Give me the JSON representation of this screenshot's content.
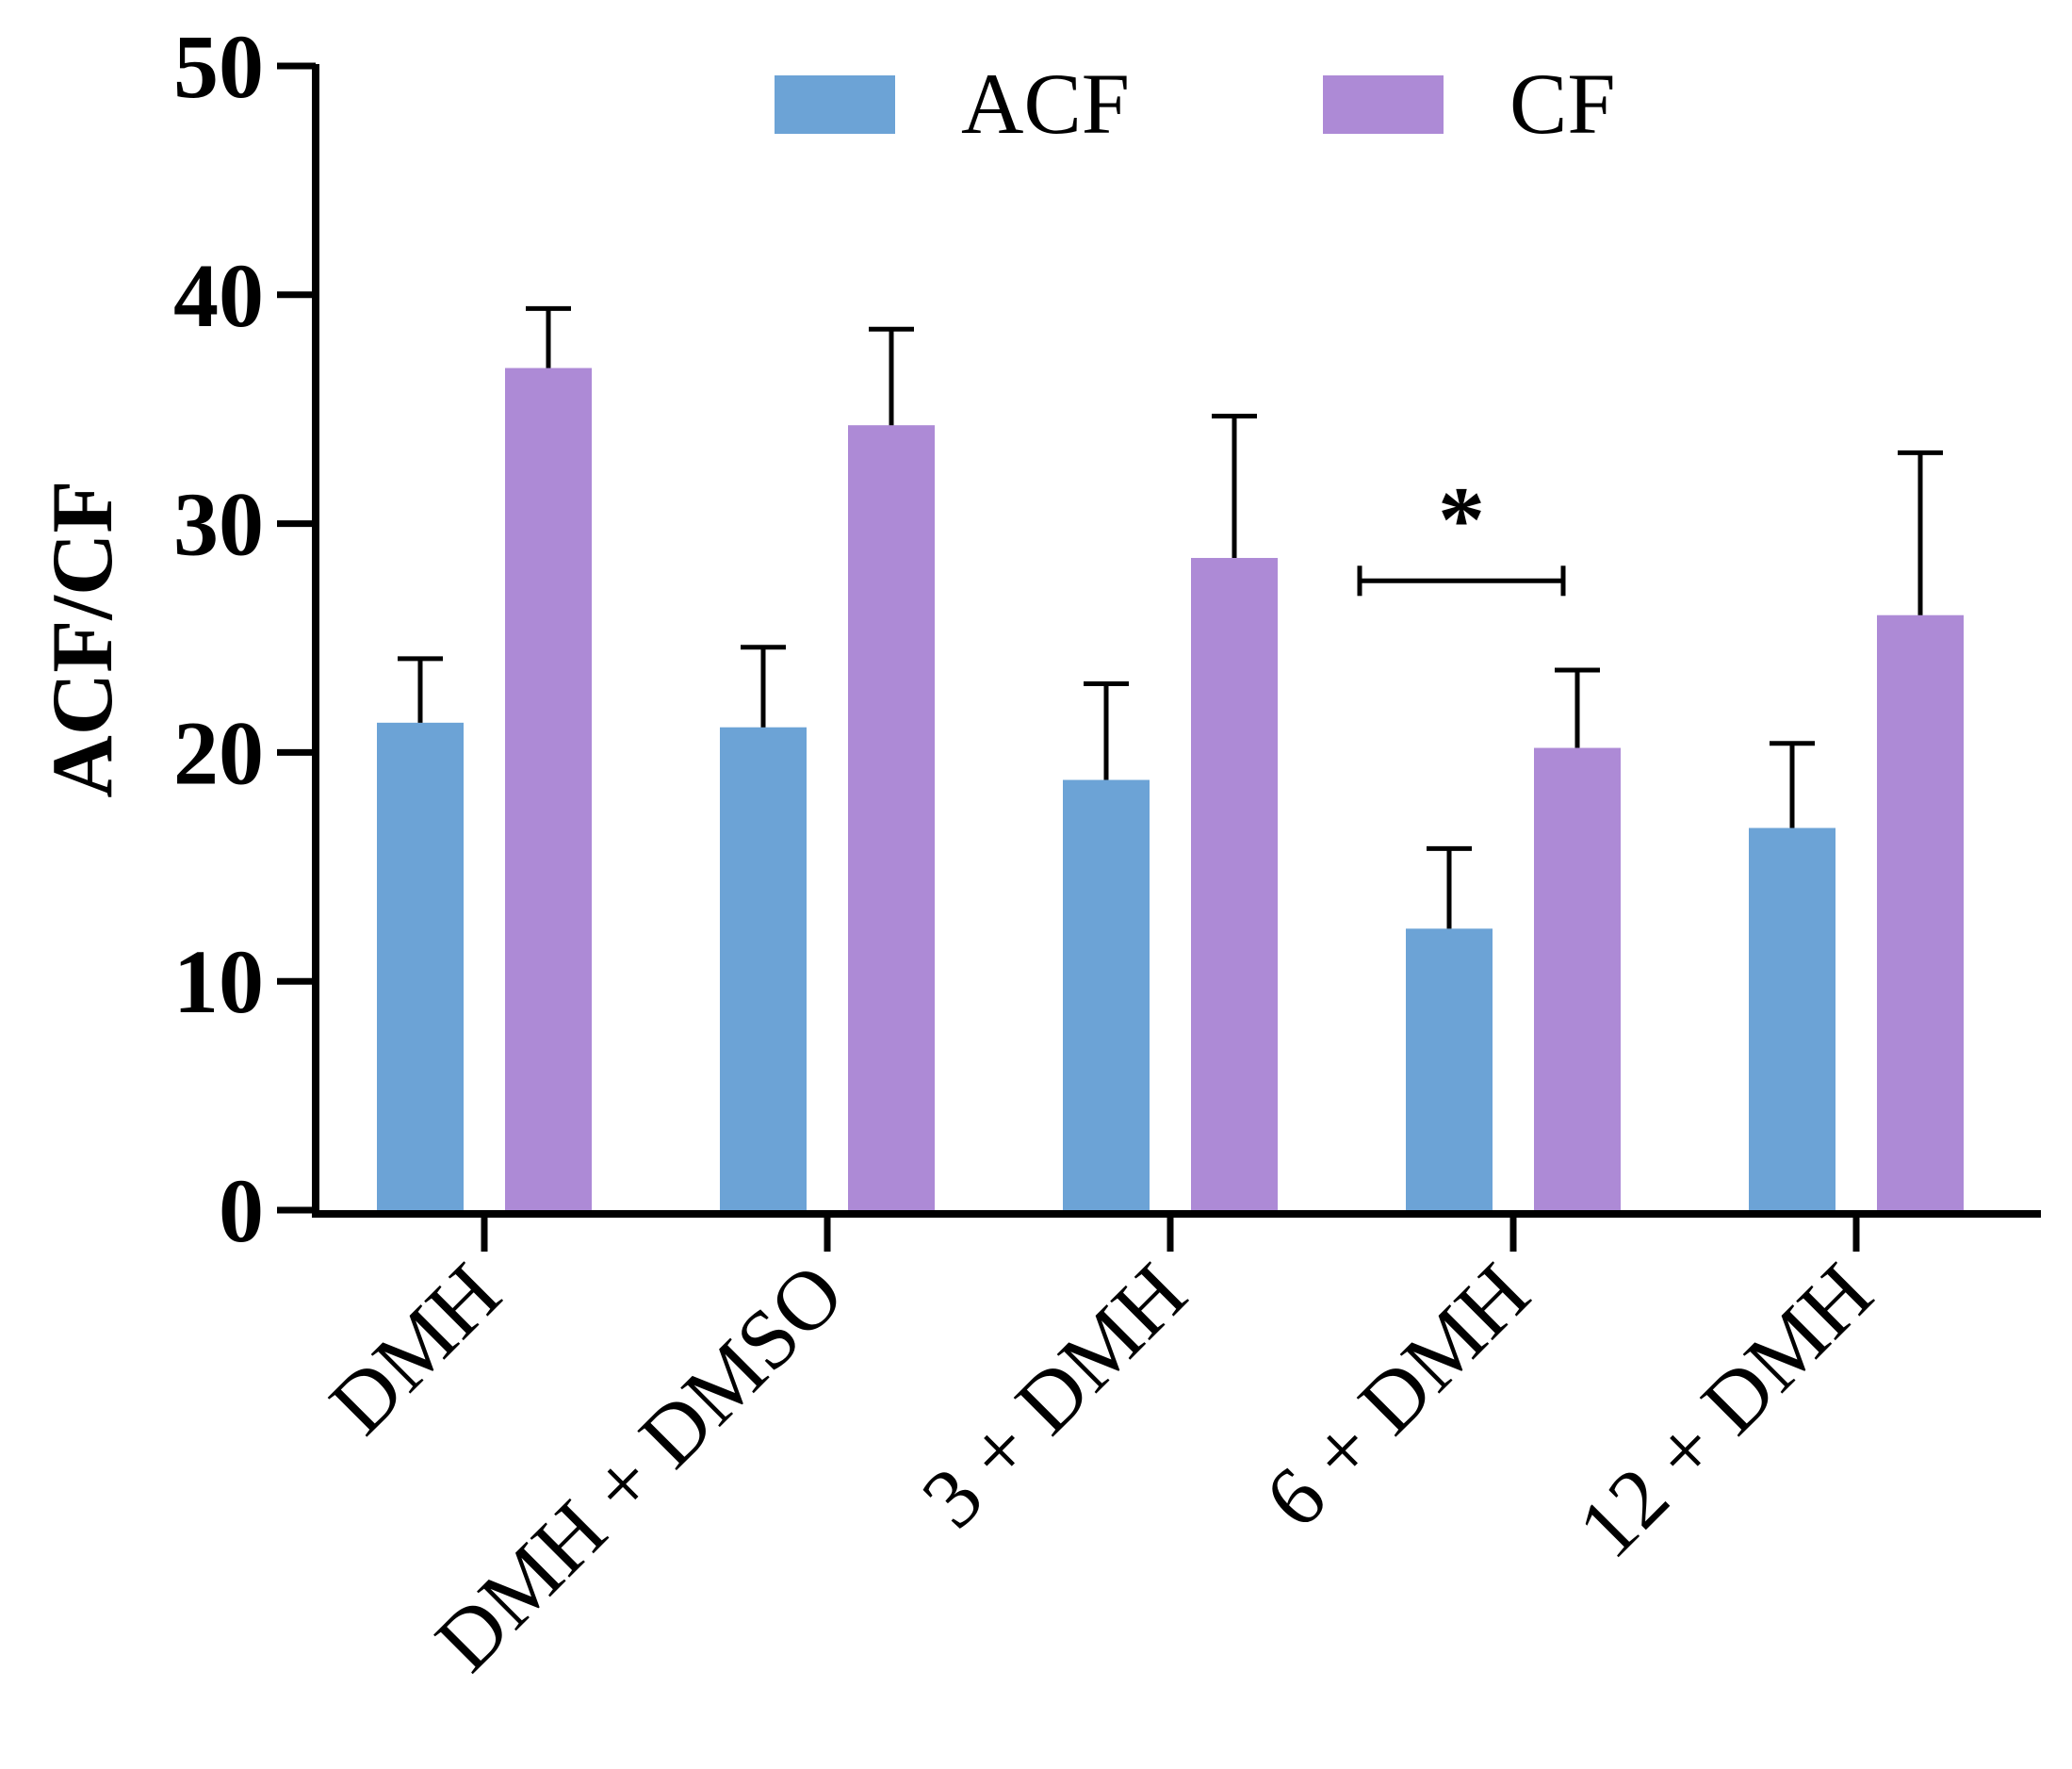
{
  "chart_data": {
    "type": "bar",
    "title": "",
    "xlabel": "",
    "ylabel": "ACF/CF",
    "ylim": [
      0,
      50
    ],
    "yticks": [
      0,
      10,
      20,
      30,
      40,
      50
    ],
    "categories": [
      "DMH",
      "DMH + DMSO",
      "3 + DMH",
      "6 + DMH",
      "12 + DMH"
    ],
    "series": [
      {
        "name": "ACF",
        "color": "#6ca3d6",
        "values": [
          21.3,
          21.1,
          18.8,
          12.3,
          16.7
        ],
        "errors": [
          2.8,
          3.5,
          4.2,
          3.5,
          3.7
        ]
      },
      {
        "name": "CF",
        "color": "#ad8ad6",
        "values": [
          36.8,
          34.3,
          28.5,
          20.2,
          26.0
        ],
        "errors": [
          2.6,
          4.2,
          6.2,
          3.4,
          7.1
        ]
      }
    ],
    "legend_position": "top",
    "grid": false,
    "annotations": [
      {
        "text": "*",
        "type": "significance",
        "category": "6 + DMH",
        "between": [
          "ACF",
          "CF"
        ],
        "y": 27.5
      }
    ]
  }
}
